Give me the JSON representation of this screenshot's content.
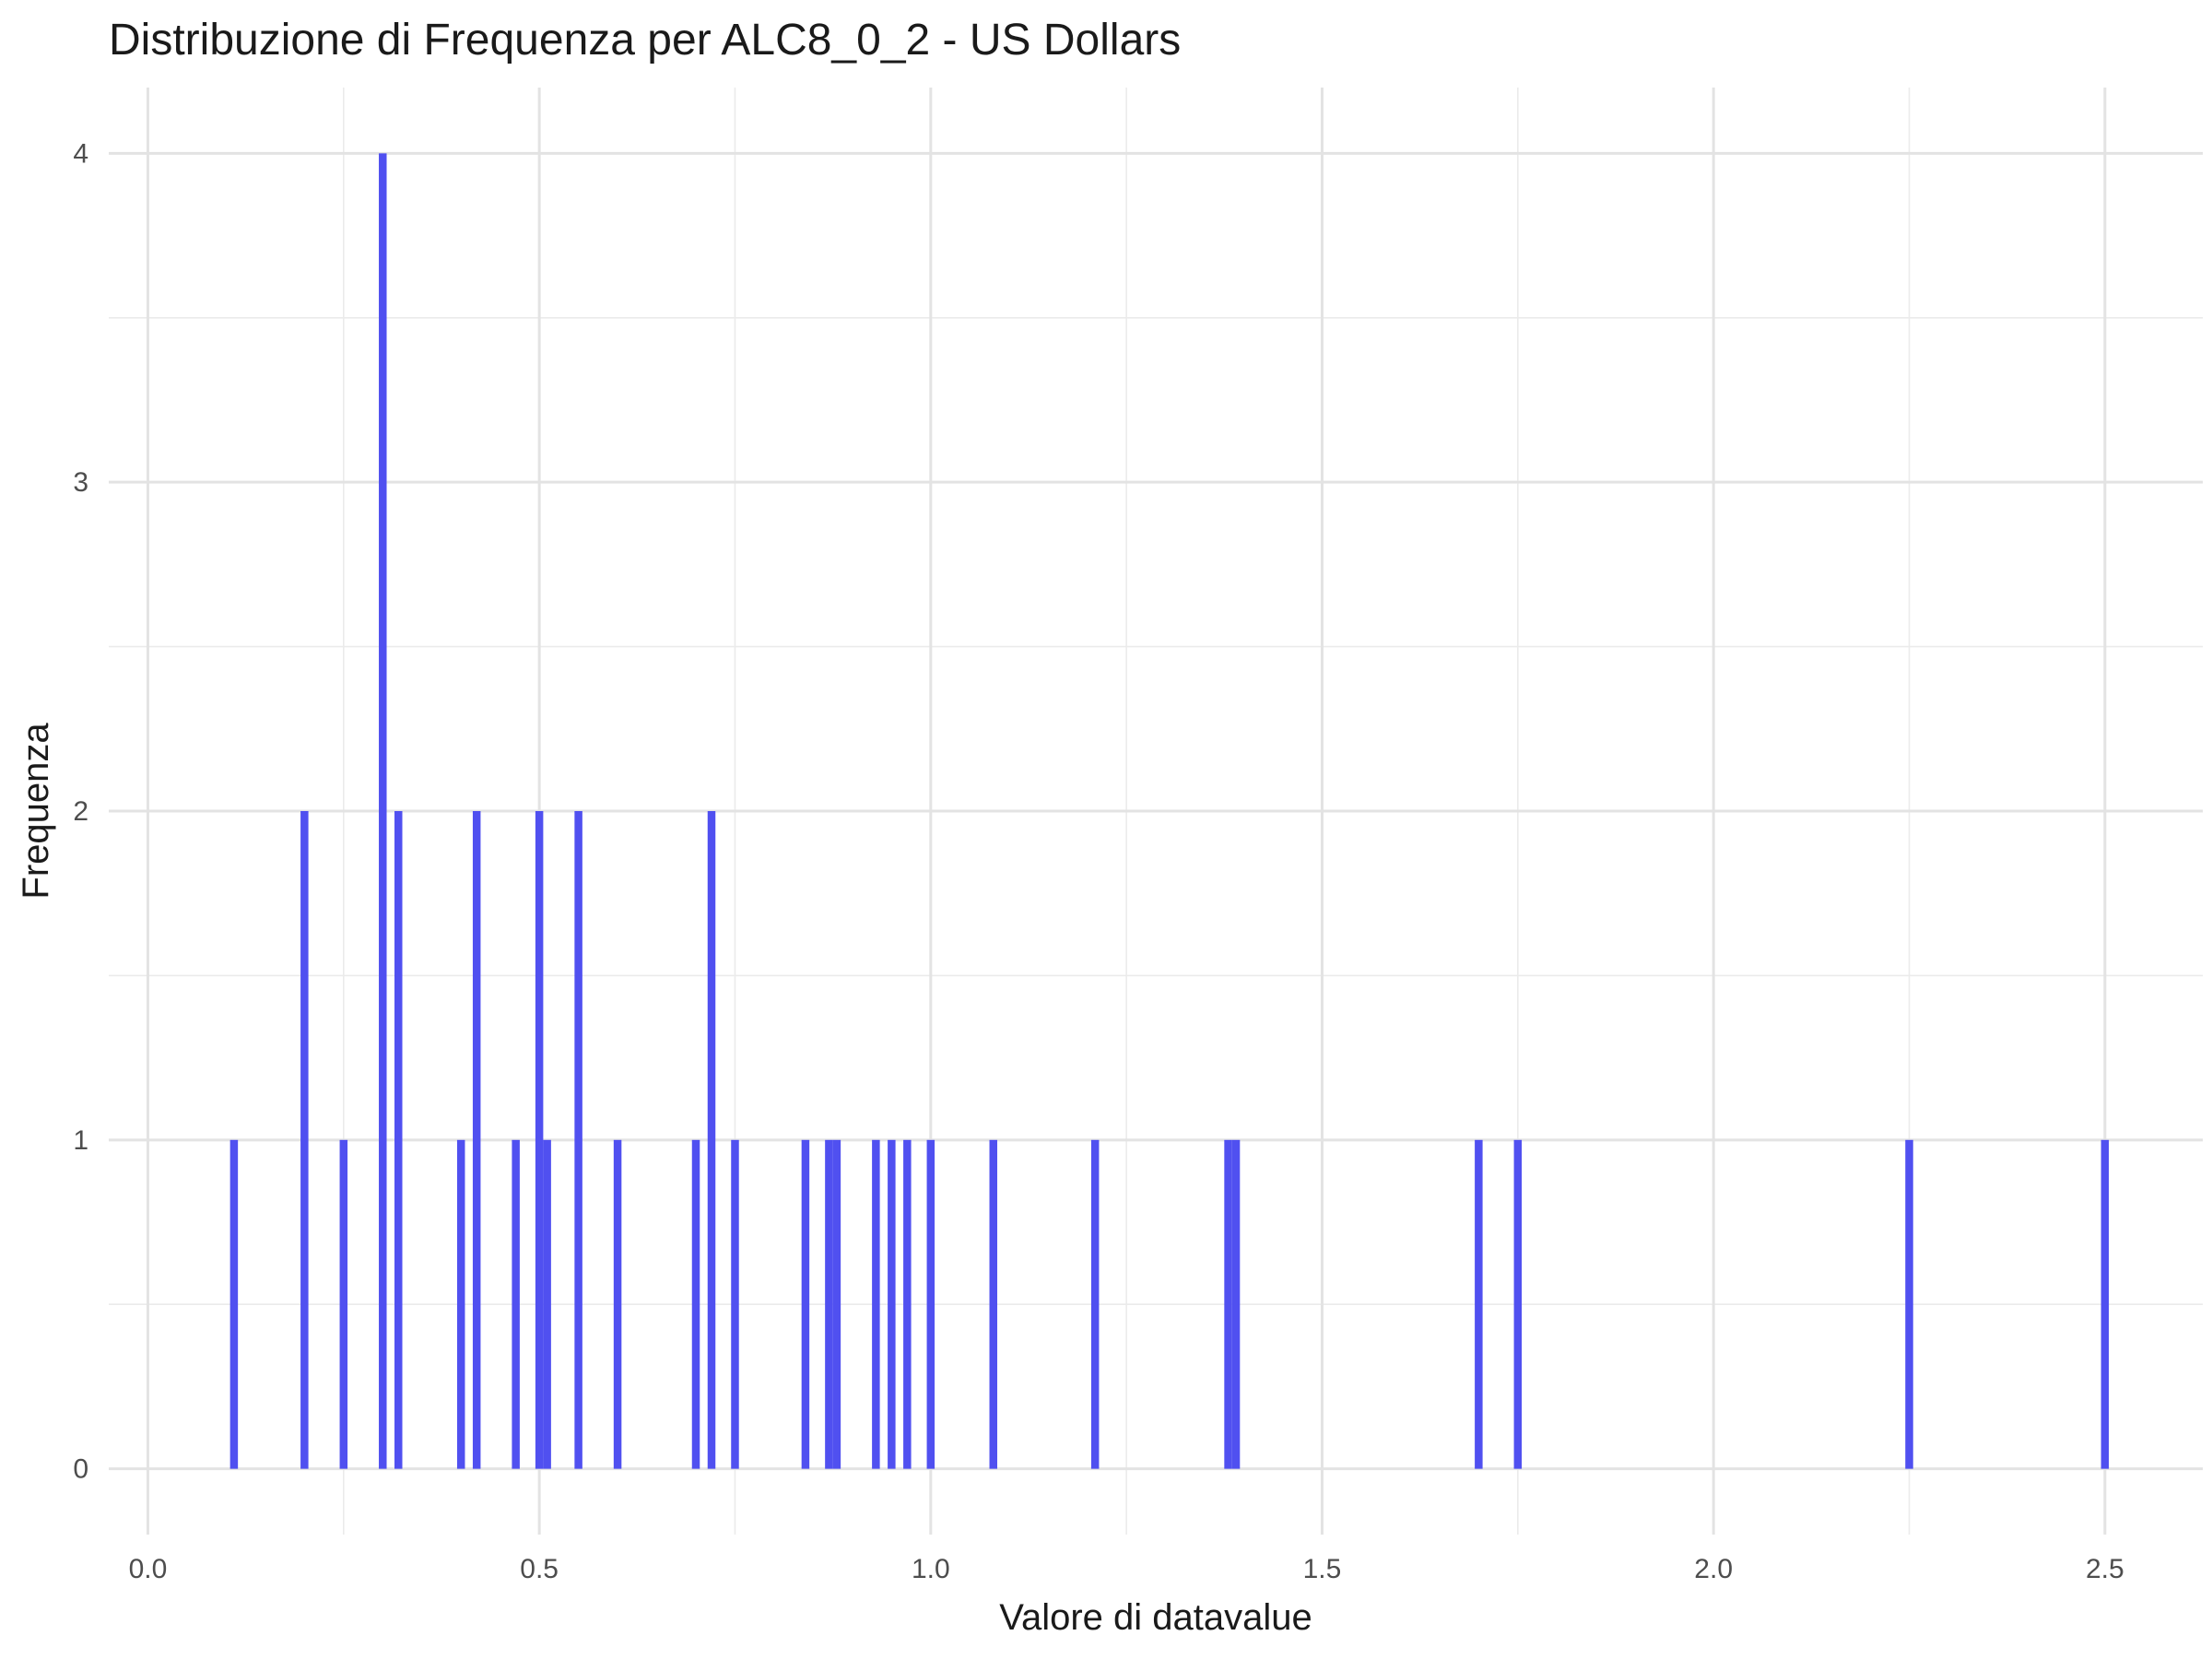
{
  "chart_data": {
    "type": "bar",
    "title": "Distribuzione di Frequenza per ALC8_0_2 - US Dollars",
    "xlabel": "Valore di datavalue",
    "ylabel": "Frequenza",
    "xlim": [
      -0.05,
      2.625
    ],
    "ylim": [
      -0.2,
      4.2
    ],
    "x_ticks": [
      0.0,
      0.5,
      1.0,
      1.5,
      2.0,
      2.5
    ],
    "x_tick_labels": [
      "0.0",
      "0.5",
      "1.0",
      "1.5",
      "2.0",
      "2.5"
    ],
    "y_ticks": [
      0,
      1,
      2,
      3,
      4
    ],
    "y_tick_labels": [
      "0",
      "1",
      "2",
      "3",
      "4"
    ],
    "grid": true,
    "bar_color": "#5050f0",
    "bin_width": 0.01,
    "bars": [
      {
        "x": 0.11,
        "count": 1
      },
      {
        "x": 0.2,
        "count": 2
      },
      {
        "x": 0.25,
        "count": 1
      },
      {
        "x": 0.3,
        "count": 4
      },
      {
        "x": 0.32,
        "count": 2
      },
      {
        "x": 0.4,
        "count": 1
      },
      {
        "x": 0.42,
        "count": 2
      },
      {
        "x": 0.47,
        "count": 1
      },
      {
        "x": 0.5,
        "count": 2
      },
      {
        "x": 0.51,
        "count": 1
      },
      {
        "x": 0.55,
        "count": 2
      },
      {
        "x": 0.6,
        "count": 1
      },
      {
        "x": 0.7,
        "count": 1
      },
      {
        "x": 0.72,
        "count": 2
      },
      {
        "x": 0.75,
        "count": 1
      },
      {
        "x": 0.84,
        "count": 1
      },
      {
        "x": 0.87,
        "count": 1
      },
      {
        "x": 0.88,
        "count": 1
      },
      {
        "x": 0.93,
        "count": 1
      },
      {
        "x": 0.95,
        "count": 1
      },
      {
        "x": 0.97,
        "count": 1
      },
      {
        "x": 1.0,
        "count": 1
      },
      {
        "x": 1.08,
        "count": 1
      },
      {
        "x": 1.21,
        "count": 1
      },
      {
        "x": 1.38,
        "count": 1
      },
      {
        "x": 1.39,
        "count": 1
      },
      {
        "x": 1.7,
        "count": 1
      },
      {
        "x": 1.75,
        "count": 1
      },
      {
        "x": 2.25,
        "count": 1
      },
      {
        "x": 2.5,
        "count": 1
      }
    ]
  }
}
